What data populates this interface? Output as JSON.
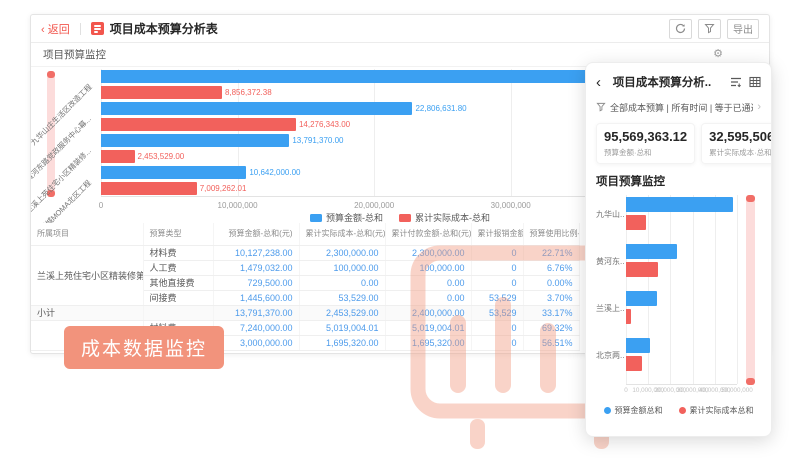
{
  "colors": {
    "accent_red": "#F2564D",
    "bar_blue": "#3BA0F2",
    "bar_red": "#F2615C",
    "badge_bg": "#F2937C",
    "num_blue": "#4D9BEB",
    "watermark": "#F2997D"
  },
  "main_window": {
    "header": {
      "back_label": "返回",
      "title": "项目成本预算分析表",
      "export_label": "导出"
    },
    "toolbar_section": {
      "title": "项目预算监控"
    },
    "legend": [
      {
        "label": "预算金额-总和",
        "color": "#3BA0F2"
      },
      {
        "label": "累计实际成本-总和",
        "color": "#F2615C"
      }
    ],
    "table": {
      "columns": [
        "所属项目",
        "预算类型",
        "预算金额-总和(元)",
        "累计实际成本-总和(元)",
        "累计付款金额-总和(元)",
        "累计报销金额-总和(元)",
        "预算使用比例-总和(%)"
      ],
      "rows": [
        {
          "project": "兰溪上苑住宅小区精装修第...",
          "project_rowspan": 4,
          "type": "材料费",
          "values": [
            "10,127,238.00",
            "2,300,000.00",
            "2,300,000.00",
            "0",
            "22.71%"
          ]
        },
        {
          "type": "人工费",
          "values": [
            "1,479,032.00",
            "100,000.00",
            "100,000.00",
            "0",
            "6.76%"
          ]
        },
        {
          "type": "其他直接费",
          "values": [
            "729,500.00",
            "0.00",
            "0.00",
            "0",
            "0.00%"
          ]
        },
        {
          "type": "间接费",
          "values": [
            "1,445,600.00",
            "53,529.00",
            "0.00",
            "53,529",
            "3.70%"
          ]
        },
        {
          "project": "小计",
          "project_rowspan": 1,
          "subtotal": true,
          "type": "",
          "values": [
            "13,791,370.00",
            "2,453,529.00",
            "2,400,000.00",
            "53,529",
            "33.17%"
          ]
        },
        {
          "project": "",
          "project_rowspan": 2,
          "type": "材料费",
          "values": [
            "7,240,000.00",
            "5,019,004.01",
            "5,019,004.01",
            "0",
            "69.32%"
          ]
        },
        {
          "type": "人工费",
          "values": [
            "3,000,000.00",
            "1,695,320.00",
            "1,695,320.00",
            "0",
            "56.51%"
          ]
        }
      ]
    },
    "badge": "成本数据监控"
  },
  "panel": {
    "title": "项目成本预算分析..",
    "filter_text": "全部成本预算 | 所有时间 | 等于已通过",
    "stats": [
      {
        "value": "95,569,363.12",
        "label": "预算金额·总和"
      },
      {
        "value": "32,595,506.40",
        "label": "累计实际成本·总和"
      }
    ],
    "section_title": "项目预算监控",
    "legend": [
      {
        "label": "预算金额总和",
        "color": "#3BA0F2"
      },
      {
        "label": "累计实际成本总和",
        "color": "#F2615C"
      }
    ]
  },
  "chart_data": [
    {
      "id": "main",
      "type": "bar",
      "orientation": "horizontal",
      "title": "项目预算监控",
      "grid": true,
      "legend_position": "bottom",
      "categories": [
        "九华山庄生活区改造工程",
        "黄河东路党政服务中心幕...",
        "兰溪上苑住宅小区精装修...",
        "北京两国城MOMA北区工程"
      ],
      "series": [
        {
          "name": "预算金额-总和",
          "color": "#3BA0F2",
          "values": [
            48329361.32,
            22806631.8,
            13791370.0,
            10642000.0
          ],
          "labels": [
            "",
            "22,806,631.80",
            "13,791,370.00",
            "10,642,000.00"
          ]
        },
        {
          "name": "累计实际成本-总和",
          "color": "#F2615C",
          "values": [
            8856372.38,
            14276343.0,
            2453529.0,
            7009262.01
          ],
          "labels": [
            "8,856,372.38",
            "14,276,343.00",
            "2,453,529.00",
            "7,009,262.01"
          ]
        }
      ],
      "xmax": 48329361.32,
      "ticks": [
        {
          "v": 0,
          "label": "0"
        },
        {
          "v": 10000000,
          "label": "10,000,000"
        },
        {
          "v": 20000000,
          "label": "20,000,000"
        },
        {
          "v": 30000000,
          "label": "30,000,000"
        },
        {
          "v": 40000000,
          "label": "40,000,000"
        }
      ]
    },
    {
      "id": "panel",
      "type": "bar",
      "orientation": "horizontal",
      "title": "项目预算监控",
      "grid": true,
      "legend_position": "bottom",
      "categories": [
        "九华山..",
        "黄河东..",
        "兰溪上..",
        "北京两.."
      ],
      "series": [
        {
          "name": "预算金额总和",
          "color": "#3BA0F2",
          "values": [
            48329361.32,
            22806631.8,
            13791370.0,
            10642000.0
          ],
          "labels": [
            "",
            "",
            "",
            ""
          ]
        },
        {
          "name": "累计实际成本总和",
          "color": "#F2615C",
          "values": [
            8856372.38,
            14276343.0,
            2453529.0,
            7009262.01
          ],
          "labels": [
            "",
            "",
            "",
            ""
          ]
        }
      ],
      "xmax": 50000000,
      "ticks": [
        {
          "v": 0,
          "label": "0"
        },
        {
          "v": 10000000,
          "label": "10,000,000"
        },
        {
          "v": 20000000,
          "label": "20,000,000"
        },
        {
          "v": 30000000,
          "label": "30,000,000"
        },
        {
          "v": 40000000,
          "label": "40,000,000"
        },
        {
          "v": 50000000,
          "label": "50,000,000"
        }
      ]
    }
  ]
}
